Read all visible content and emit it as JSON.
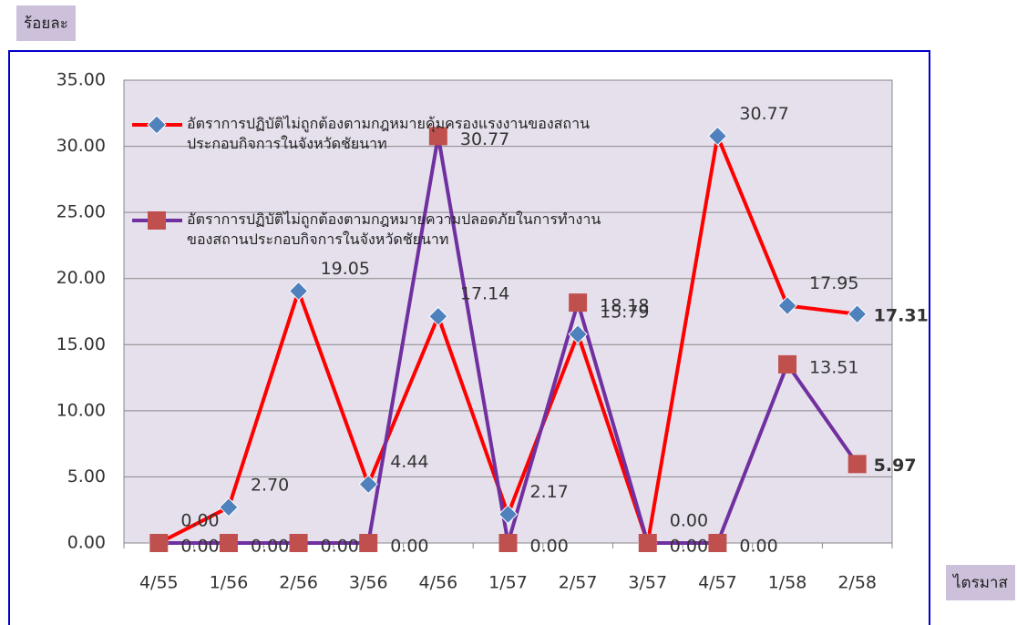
{
  "chart_data": {
    "type": "line",
    "y_axis_label": "ร้อยละ",
    "x_axis_label": "ไตรมาส",
    "categories": [
      "4/55",
      "1/56",
      "2/56",
      "3/56",
      "4/56",
      "1/57",
      "2/57",
      "3/57",
      "4/57",
      "1/58",
      "2/58"
    ],
    "series": [
      {
        "name": "อัตราการปฏิบัติไม่ถูกต้องตามกฎหมายคุ้มครองแรงงานของสถานประกอบกิจการในจังหวัดชัยนาท",
        "color": "#ff0000",
        "marker_color": "#4f81bd",
        "marker": "diamond",
        "values": [
          0,
          2.7,
          19.05,
          4.44,
          17.14,
          2.17,
          15.79,
          0,
          30.77,
          17.95,
          17.31
        ],
        "value_labels": [
          "0.00",
          "2.70",
          "19.05",
          "4.44",
          "17.14",
          "2.17",
          "15.79",
          "0.00",
          "30.77",
          "17.95",
          "17.31"
        ]
      },
      {
        "name": "อัตราการปฏิบัติไม่ถูกต้องตามกฎหมายความปลอดภัยในการทำงานของสถานประกอบกิจการในจังหวัดชัยนาท",
        "color": "#7030a0",
        "marker_color": "#c0504d",
        "marker": "square",
        "values": [
          0,
          0,
          0,
          0,
          30.77,
          0,
          18.18,
          0,
          0,
          13.51,
          5.97
        ],
        "value_labels": [
          "0.00",
          "0.00",
          "0.00",
          "0.00",
          "30.77",
          "0.00",
          "18.18",
          "0.00",
          "0.00",
          "13.51",
          "5.97"
        ]
      }
    ],
    "ylim": [
      0,
      35
    ],
    "yticks": [
      {
        "value": 0,
        "label": "0.00"
      },
      {
        "value": 5,
        "label": "5.00"
      },
      {
        "value": 10,
        "label": "10.00"
      },
      {
        "value": 15,
        "label": "15.00"
      },
      {
        "value": 20,
        "label": "20.00"
      },
      {
        "value": 25,
        "label": "25.00"
      },
      {
        "value": 30,
        "label": "30.00"
      },
      {
        "value": 35,
        "label": "35.00"
      }
    ],
    "grid": true
  }
}
